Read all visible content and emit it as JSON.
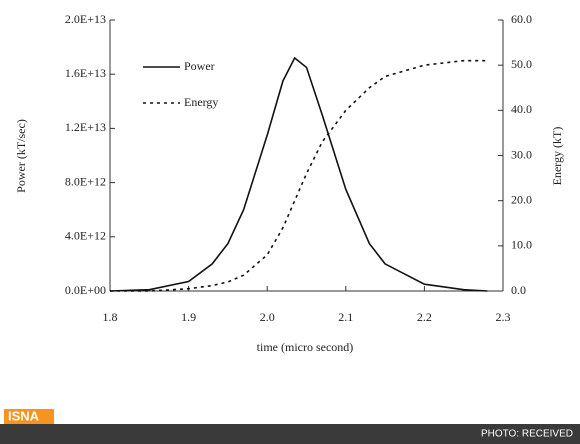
{
  "chart_data": {
    "type": "line",
    "xlabel": "time (micro second)",
    "ylabel": "Power (kT/sec)",
    "y2label": "Energy (kT)",
    "x": [
      1.8,
      1.85,
      1.9,
      1.93,
      1.95,
      1.97,
      2.0,
      2.02,
      2.035,
      2.05,
      2.07,
      2.1,
      2.13,
      2.15,
      2.2,
      2.25,
      2.28
    ],
    "series": [
      {
        "name": "Power",
        "color": "#111111",
        "dash": false,
        "values": [
          0,
          100000000000.0,
          700000000000.0,
          2000000000000.0,
          3500000000000.0,
          6000000000000.0,
          11500000000000.0,
          15500000000000.0,
          17200000000000.0,
          16500000000000.0,
          13000000000000.0,
          7500000000000.0,
          3500000000000.0,
          2000000000000.0,
          500000000000.0,
          100000000000.0,
          0
        ]
      },
      {
        "name": "Energy",
        "color": "#111111",
        "dash": true,
        "axis": "y2",
        "values": [
          0,
          0,
          0.5,
          1.2,
          2,
          3.5,
          8,
          14,
          20,
          26,
          33,
          40,
          45,
          47.5,
          50,
          51,
          51
        ]
      }
    ],
    "xlim": [
      1.8,
      2.3
    ],
    "xticks": [
      1.8,
      1.9,
      {
        "value": 2,
        "label": "2.0"
      },
      2.1,
      2.2,
      2.3
    ],
    "ylim": [
      0,
      20000000000000.0
    ],
    "yticks": [
      {
        "value": 0,
        "label": "0.0E+00"
      },
      {
        "value": 4000000000000.0,
        "label": "4.0E+12"
      },
      {
        "value": 8000000000000.0,
        "label": "8.0E+12"
      },
      {
        "value": 12000000000000.0,
        "label": "1.2E+13"
      },
      {
        "value": 16000000000000.0,
        "label": "1.6E+13"
      },
      {
        "value": 20000000000000.0,
        "label": "2.0E+13"
      }
    ],
    "y2lim": [
      0,
      60
    ],
    "y2ticks": [
      {
        "value": 0,
        "label": "0.0"
      },
      {
        "value": 10,
        "label": "10.0"
      },
      {
        "value": 20,
        "label": "20.0"
      },
      {
        "value": 30,
        "label": "30.0"
      },
      {
        "value": 40,
        "label": "40.0"
      },
      {
        "value": 50,
        "label": "50.0"
      },
      {
        "value": 60,
        "label": "60.0"
      }
    ],
    "legend": "upper-left",
    "grid": false
  },
  "footer": {
    "logo": "ISNA",
    "credit": "PHOTO: RECEIVED"
  }
}
